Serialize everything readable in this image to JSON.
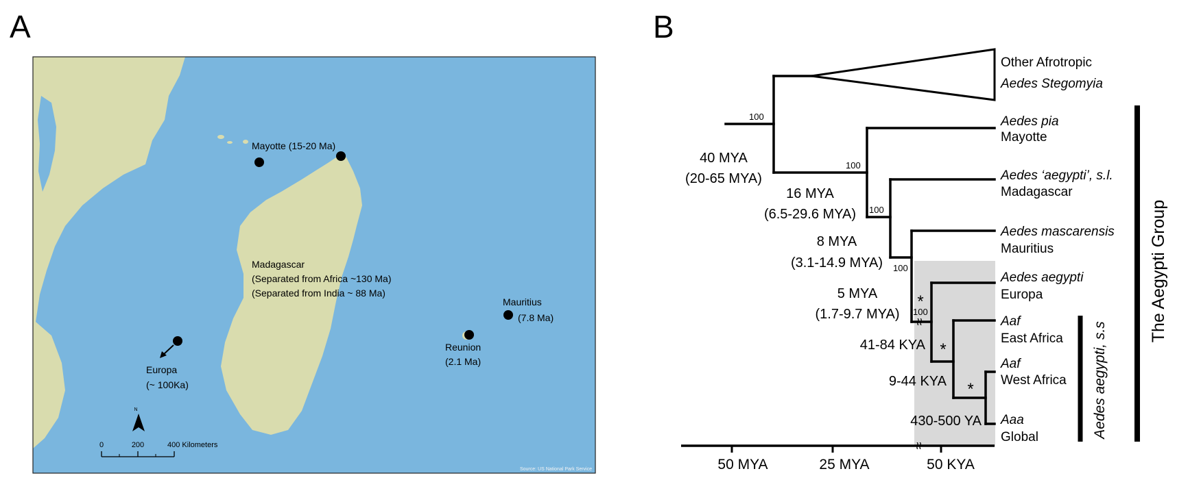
{
  "panel_a": {
    "letter": "A",
    "ocean_color": "#7ab6de",
    "land_color": "#d9dcae",
    "labels": {
      "mayotte": "Mayotte (15-20 Ma)",
      "madagascar_1": "Madagascar",
      "madagascar_2": "(Separated from Africa ~130 Ma)",
      "madagascar_3": "(Separated from India ~ 88 Ma)",
      "mauritius_1": "Mauritius",
      "mauritius_2": "(7.8 Ma)",
      "reunion_1": "Reunion",
      "reunion_2": "(2.1 Ma)",
      "europa_1": "Europa",
      "europa_2": "(~ 100Ka)",
      "north": "N",
      "scale_0": "0",
      "scale_200": "200",
      "scale_400": "400 Kilometers",
      "source": "Source: US National Park Service"
    }
  },
  "panel_b": {
    "letter": "B",
    "bootstrap": [
      "100",
      "100",
      "100",
      "100",
      "100"
    ],
    "divergence": {
      "root_1": "40 MYA",
      "root_2": "(20-65 MYA)",
      "n16_1": "16 MYA",
      "n16_2": "(6.5-29.6 MYA)",
      "n8_1": "8 MYA",
      "n8_2": "(3.1-14.9 MYA)",
      "n5_1": "5 MYA",
      "n5_2": "(1.7-9.7 MYA)",
      "k1": "41-84 KYA",
      "k2": "9-44 KYA",
      "k3": "430-500 YA"
    },
    "asterisk": "*",
    "break_mark": "≈",
    "tips": {
      "outgroup_1": "Other Afrotropic",
      "outgroup_2": "Aedes Stegomyia",
      "pia_1": "Aedes pia",
      "pia_2": "Mayotte",
      "aeg_sl_1": "Aedes ‘aegypti’, s.l.",
      "aeg_sl_2": "Madagascar",
      "masc_1": "Aedes mascarensis",
      "masc_2": "Mauritius",
      "aeg_eu_1": "Aedes aegypti",
      "aeg_eu_2": "Europa",
      "aaf_e_1": "Aaf",
      "aaf_e_2": "East Africa",
      "aaf_w_1": "Aaf",
      "aaf_w_2": "West Africa",
      "aaa_1": "Aaa",
      "aaa_2": "Global"
    },
    "group_label": "The Aegypti Group",
    "ss_label": "Aedes aegypti, s.s",
    "axis_ticks": [
      "50 MYA",
      "25 MYA",
      "50 KYA"
    ]
  }
}
